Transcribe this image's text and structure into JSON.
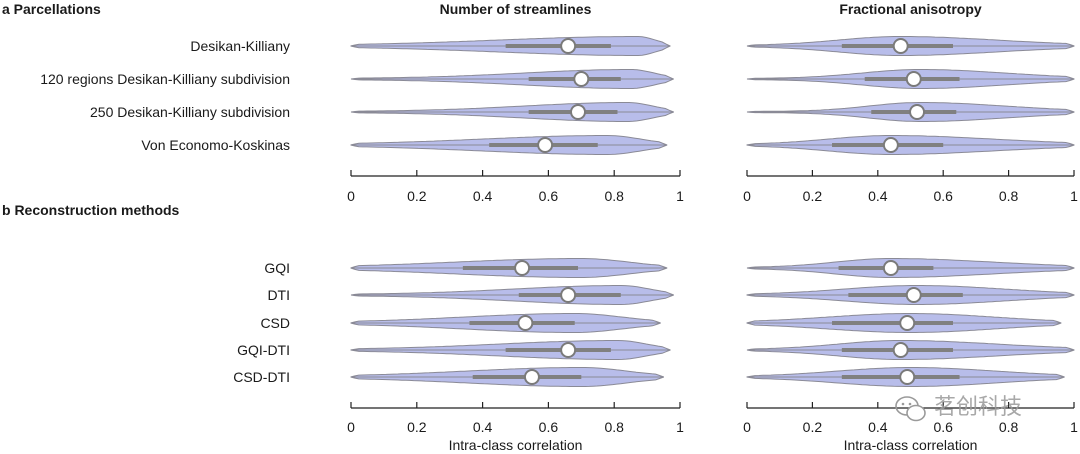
{
  "figure": {
    "column_titles": [
      "Number of streamlines",
      "Fractional anisotropy"
    ],
    "watermark": "茗创科技"
  },
  "chart_data": [
    {
      "type": "violin",
      "panel": "a",
      "section_title": "a Parcellations",
      "title": "Number of streamlines",
      "xlabel": "",
      "xlim": [
        0,
        1
      ],
      "xticks": [
        "0",
        "0.2",
        "0.4",
        "0.6",
        "0.8",
        "1"
      ],
      "categories": [
        "Desikan-Killiany",
        "120 regions Desikan-Killiany subdivision",
        "250 Desikan-Killiany subdivision",
        "Von Economo-Koskinas"
      ],
      "series": [
        {
          "name": "Desikan-Killiany",
          "min": 0.0,
          "q1": 0.47,
          "median": 0.66,
          "q3": 0.79,
          "max": 0.97,
          "mode": 0.87
        },
        {
          "name": "120 regions Desikan-Killiany subdivision",
          "min": 0.0,
          "q1": 0.54,
          "median": 0.7,
          "q3": 0.82,
          "max": 0.98,
          "mode": 0.85
        },
        {
          "name": "250 Desikan-Killiany subdivision",
          "min": 0.0,
          "q1": 0.54,
          "median": 0.69,
          "q3": 0.81,
          "max": 0.98,
          "mode": 0.84
        },
        {
          "name": "Von Economo-Koskinas",
          "min": 0.0,
          "q1": 0.42,
          "median": 0.59,
          "q3": 0.75,
          "max": 0.96,
          "mode": 0.78
        }
      ]
    },
    {
      "type": "violin",
      "panel": "a",
      "section_title": "",
      "title": "Fractional anisotropy",
      "xlabel": "",
      "xlim": [
        0,
        1
      ],
      "xticks": [
        "0",
        "0.2",
        "0.4",
        "0.6",
        "0.8",
        "1"
      ],
      "categories": [
        "Desikan-Killiany",
        "120 regions Desikan-Killiany subdivision",
        "250 Desikan-Killiany subdivision",
        "Von Economo-Koskinas"
      ],
      "series": [
        {
          "name": "Desikan-Killiany",
          "min": 0.0,
          "q1": 0.29,
          "median": 0.47,
          "q3": 0.63,
          "max": 1.0,
          "mode": 0.47
        },
        {
          "name": "120 regions Desikan-Killiany subdivision",
          "min": 0.0,
          "q1": 0.36,
          "median": 0.51,
          "q3": 0.65,
          "max": 1.0,
          "mode": 0.53
        },
        {
          "name": "250 Desikan-Killiany subdivision",
          "min": 0.0,
          "q1": 0.38,
          "median": 0.52,
          "q3": 0.64,
          "max": 1.0,
          "mode": 0.53
        },
        {
          "name": "Von Economo-Koskinas",
          "min": 0.0,
          "q1": 0.26,
          "median": 0.44,
          "q3": 0.6,
          "max": 1.0,
          "mode": 0.44
        }
      ]
    },
    {
      "type": "violin",
      "panel": "b",
      "section_title": "b Reconstruction methods",
      "title": "",
      "xlabel": "Intra-class correlation",
      "xlim": [
        0,
        1
      ],
      "xticks": [
        "0",
        "0.2",
        "0.4",
        "0.6",
        "0.8",
        "1"
      ],
      "categories": [
        "GQI",
        "DTI",
        "CSD",
        "GQI-DTI",
        "CSD-DTI"
      ],
      "series": [
        {
          "name": "GQI",
          "min": 0.0,
          "q1": 0.34,
          "median": 0.52,
          "q3": 0.69,
          "max": 0.96,
          "mode": 0.7
        },
        {
          "name": "DTI",
          "min": 0.0,
          "q1": 0.51,
          "median": 0.66,
          "q3": 0.82,
          "max": 0.98,
          "mode": 0.82
        },
        {
          "name": "CSD",
          "min": 0.0,
          "q1": 0.36,
          "median": 0.53,
          "q3": 0.68,
          "max": 0.94,
          "mode": 0.68
        },
        {
          "name": "GQI-DTI",
          "min": 0.0,
          "q1": 0.47,
          "median": 0.66,
          "q3": 0.79,
          "max": 0.97,
          "mode": 0.81
        },
        {
          "name": "CSD-DTI",
          "min": 0.0,
          "q1": 0.37,
          "median": 0.55,
          "q3": 0.7,
          "max": 0.95,
          "mode": 0.7
        }
      ]
    },
    {
      "type": "violin",
      "panel": "b",
      "section_title": "",
      "title": "",
      "xlabel": "Intra-class correlation",
      "xlim": [
        0,
        1
      ],
      "xticks": [
        "0",
        "0.2",
        "0.4",
        "0.6",
        "0.8",
        "1"
      ],
      "categories": [
        "GQI",
        "DTI",
        "CSD",
        "GQI-DTI",
        "CSD-DTI"
      ],
      "series": [
        {
          "name": "GQI",
          "min": 0.0,
          "q1": 0.28,
          "median": 0.44,
          "q3": 0.57,
          "max": 1.0,
          "mode": 0.44
        },
        {
          "name": "DTI",
          "min": 0.0,
          "q1": 0.31,
          "median": 0.51,
          "q3": 0.66,
          "max": 1.0,
          "mode": 0.52
        },
        {
          "name": "CSD",
          "min": 0.0,
          "q1": 0.26,
          "median": 0.49,
          "q3": 0.63,
          "max": 0.96,
          "mode": 0.5
        },
        {
          "name": "GQI-DTI",
          "min": 0.0,
          "q1": 0.29,
          "median": 0.47,
          "q3": 0.63,
          "max": 1.0,
          "mode": 0.47
        },
        {
          "name": "CSD-DTI",
          "min": 0.0,
          "q1": 0.29,
          "median": 0.49,
          "q3": 0.65,
          "max": 0.97,
          "mode": 0.5
        }
      ]
    }
  ]
}
